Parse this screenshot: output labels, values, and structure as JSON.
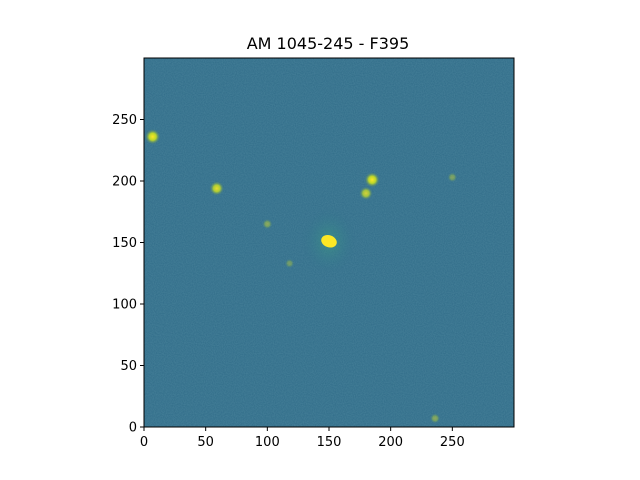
{
  "title": "AM 1045-245 - F395",
  "image_axes": {
    "xlim": [
      0,
      300
    ],
    "ylim": [
      0,
      300
    ],
    "x_ticks": [
      0,
      50,
      100,
      150,
      200,
      250
    ],
    "y_ticks": [
      0,
      50,
      100,
      150,
      200,
      250
    ],
    "x_tick_labels": [
      "0",
      "50",
      "100",
      "150",
      "200",
      "250"
    ],
    "y_tick_labels": [
      "0",
      "50",
      "100",
      "150",
      "200",
      "250"
    ],
    "colormap": "viridis",
    "background_color": "#2f6b88"
  },
  "sources": [
    {
      "name": "galaxy-core",
      "x": 150,
      "y": 151,
      "brightness": 1.0,
      "extended": true
    },
    {
      "name": "star-1",
      "x": 7,
      "y": 236,
      "brightness": 1.0
    },
    {
      "name": "star-2",
      "x": 59,
      "y": 194,
      "brightness": 0.9
    },
    {
      "name": "star-3",
      "x": 185,
      "y": 201,
      "brightness": 1.0
    },
    {
      "name": "star-4",
      "x": 180,
      "y": 190,
      "brightness": 0.8
    },
    {
      "name": "star-5",
      "x": 250,
      "y": 203,
      "brightness": 0.4
    },
    {
      "name": "star-6",
      "x": 100,
      "y": 165,
      "brightness": 0.45
    },
    {
      "name": "star-7",
      "x": 118,
      "y": 133,
      "brightness": 0.35
    },
    {
      "name": "star-8",
      "x": 236,
      "y": 7,
      "brightness": 0.45
    }
  ]
}
